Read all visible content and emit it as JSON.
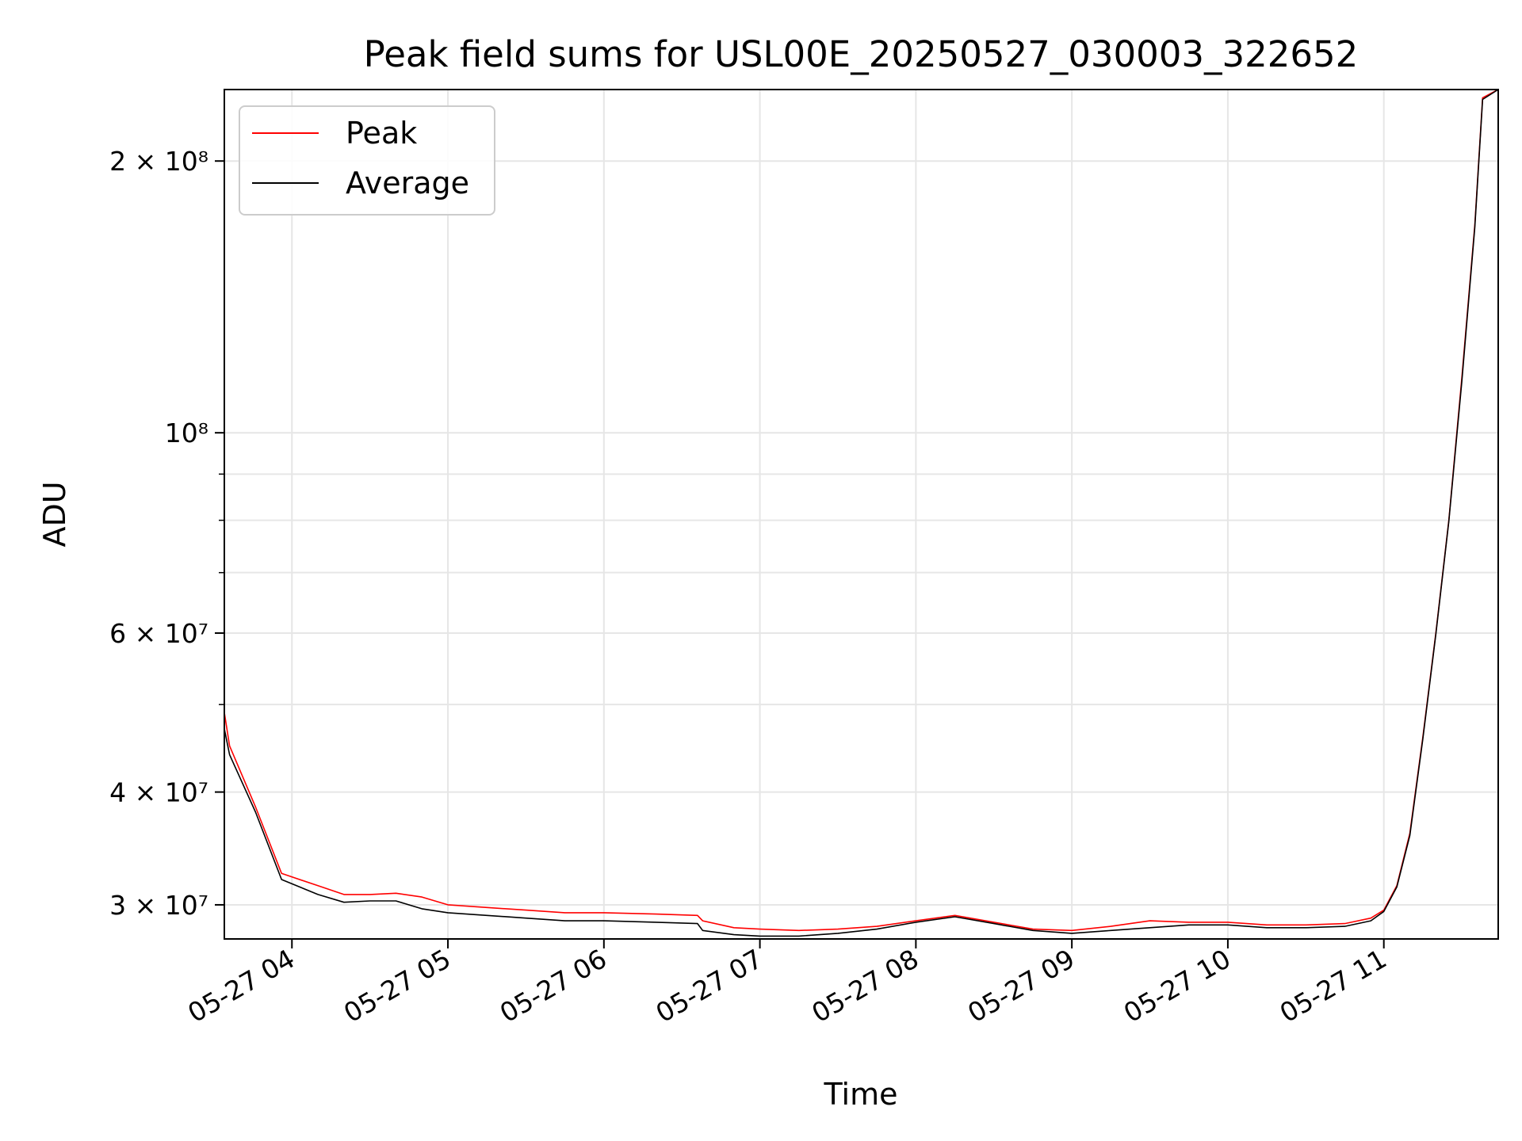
{
  "chart_data": {
    "type": "line",
    "title": "Peak field sums for USL00E_20250527_030003_322652",
    "xlabel": "Time",
    "ylabel": "ADU",
    "y_scale": "log",
    "xlim": [
      "2025-05-27 03:34",
      "2025-05-27 11:44"
    ],
    "ylim": [
      27500000,
      240000000
    ],
    "grid": true,
    "legend_position": "top-left",
    "x_ticks": [
      {
        "time": "2025-05-27 04:00",
        "label": "05-27 04"
      },
      {
        "time": "2025-05-27 05:00",
        "label": "05-27 05"
      },
      {
        "time": "2025-05-27 06:00",
        "label": "05-27 06"
      },
      {
        "time": "2025-05-27 07:00",
        "label": "05-27 07"
      },
      {
        "time": "2025-05-27 08:00",
        "label": "05-27 08"
      },
      {
        "time": "2025-05-27 09:00",
        "label": "05-27 09"
      },
      {
        "time": "2025-05-27 10:00",
        "label": "05-27 10"
      },
      {
        "time": "2025-05-27 11:00",
        "label": "05-27 11"
      }
    ],
    "y_ticks": [
      {
        "value": 30000000,
        "label": "3 × 10⁷"
      },
      {
        "value": 40000000,
        "label": "4 × 10⁷"
      },
      {
        "value": 60000000,
        "label": "6 × 10⁷"
      },
      {
        "value": 100000000,
        "label": "10⁸"
      },
      {
        "value": 200000000,
        "label": "2 × 10⁸"
      }
    ],
    "y_minor_grid": [
      50000000,
      70000000,
      80000000,
      90000000
    ],
    "series": [
      {
        "name": "Peak",
        "color": "#ff0000",
        "x": [
          "2025-05-27 03:34",
          "2025-05-27 03:36",
          "2025-05-27 03:46",
          "2025-05-27 03:56",
          "2025-05-27 04:10",
          "2025-05-27 04:20",
          "2025-05-27 04:30",
          "2025-05-27 04:40",
          "2025-05-27 04:50",
          "2025-05-27 05:00",
          "2025-05-27 05:15",
          "2025-05-27 05:30",
          "2025-05-27 05:45",
          "2025-05-27 06:00",
          "2025-05-27 06:20",
          "2025-05-27 06:36",
          "2025-05-27 06:38",
          "2025-05-27 06:50",
          "2025-05-27 07:00",
          "2025-05-27 07:15",
          "2025-05-27 07:30",
          "2025-05-27 07:45",
          "2025-05-27 08:00",
          "2025-05-27 08:15",
          "2025-05-27 08:30",
          "2025-05-27 08:45",
          "2025-05-27 09:00",
          "2025-05-27 09:15",
          "2025-05-27 09:30",
          "2025-05-27 09:45",
          "2025-05-27 10:00",
          "2025-05-27 10:15",
          "2025-05-27 10:30",
          "2025-05-27 10:45",
          "2025-05-27 10:55",
          "2025-05-27 11:00",
          "2025-05-27 11:05",
          "2025-05-27 11:10",
          "2025-05-27 11:15",
          "2025-05-27 11:20",
          "2025-05-27 11:25",
          "2025-05-27 11:30",
          "2025-05-27 11:35",
          "2025-05-27 11:38",
          "2025-05-27 11:44"
        ],
        "values": [
          49000000,
          45000000,
          38500000,
          32500000,
          31500000,
          30800000,
          30800000,
          30900000,
          30600000,
          30000000,
          29800000,
          29600000,
          29400000,
          29400000,
          29300000,
          29200000,
          28800000,
          28300000,
          28200000,
          28100000,
          28200000,
          28400000,
          28800000,
          29200000,
          28700000,
          28200000,
          28100000,
          28400000,
          28800000,
          28700000,
          28700000,
          28500000,
          28500000,
          28600000,
          29000000,
          29600000,
          31500000,
          36000000,
          46000000,
          60000000,
          80000000,
          115000000,
          170000000,
          235000000,
          240000000
        ]
      },
      {
        "name": "Average",
        "color": "#000000",
        "x": [
          "2025-05-27 03:34",
          "2025-05-27 03:36",
          "2025-05-27 03:46",
          "2025-05-27 03:56",
          "2025-05-27 04:10",
          "2025-05-27 04:20",
          "2025-05-27 04:30",
          "2025-05-27 04:40",
          "2025-05-27 04:50",
          "2025-05-27 05:00",
          "2025-05-27 05:15",
          "2025-05-27 05:30",
          "2025-05-27 05:45",
          "2025-05-27 06:00",
          "2025-05-27 06:20",
          "2025-05-27 06:36",
          "2025-05-27 06:38",
          "2025-05-27 06:50",
          "2025-05-27 07:00",
          "2025-05-27 07:15",
          "2025-05-27 07:30",
          "2025-05-27 07:45",
          "2025-05-27 08:00",
          "2025-05-27 08:15",
          "2025-05-27 08:30",
          "2025-05-27 08:45",
          "2025-05-27 09:00",
          "2025-05-27 09:15",
          "2025-05-27 09:30",
          "2025-05-27 09:45",
          "2025-05-27 10:00",
          "2025-05-27 10:15",
          "2025-05-27 10:30",
          "2025-05-27 10:45",
          "2025-05-27 10:55",
          "2025-05-27 11:00",
          "2025-05-27 11:05",
          "2025-05-27 11:10",
          "2025-05-27 11:15",
          "2025-05-27 11:20",
          "2025-05-27 11:25",
          "2025-05-27 11:30",
          "2025-05-27 11:35",
          "2025-05-27 11:38",
          "2025-05-27 11:44"
        ],
        "values": [
          47000000,
          44000000,
          38000000,
          32000000,
          30800000,
          30200000,
          30300000,
          30300000,
          29700000,
          29400000,
          29200000,
          29000000,
          28800000,
          28800000,
          28700000,
          28600000,
          28100000,
          27800000,
          27700000,
          27700000,
          27900000,
          28200000,
          28700000,
          29100000,
          28600000,
          28100000,
          27900000,
          28100000,
          28300000,
          28500000,
          28500000,
          28300000,
          28300000,
          28400000,
          28800000,
          29500000,
          31400000,
          35800000,
          45800000,
          59800000,
          79800000,
          114000000,
          169000000,
          234000000,
          240000000
        ]
      }
    ]
  }
}
